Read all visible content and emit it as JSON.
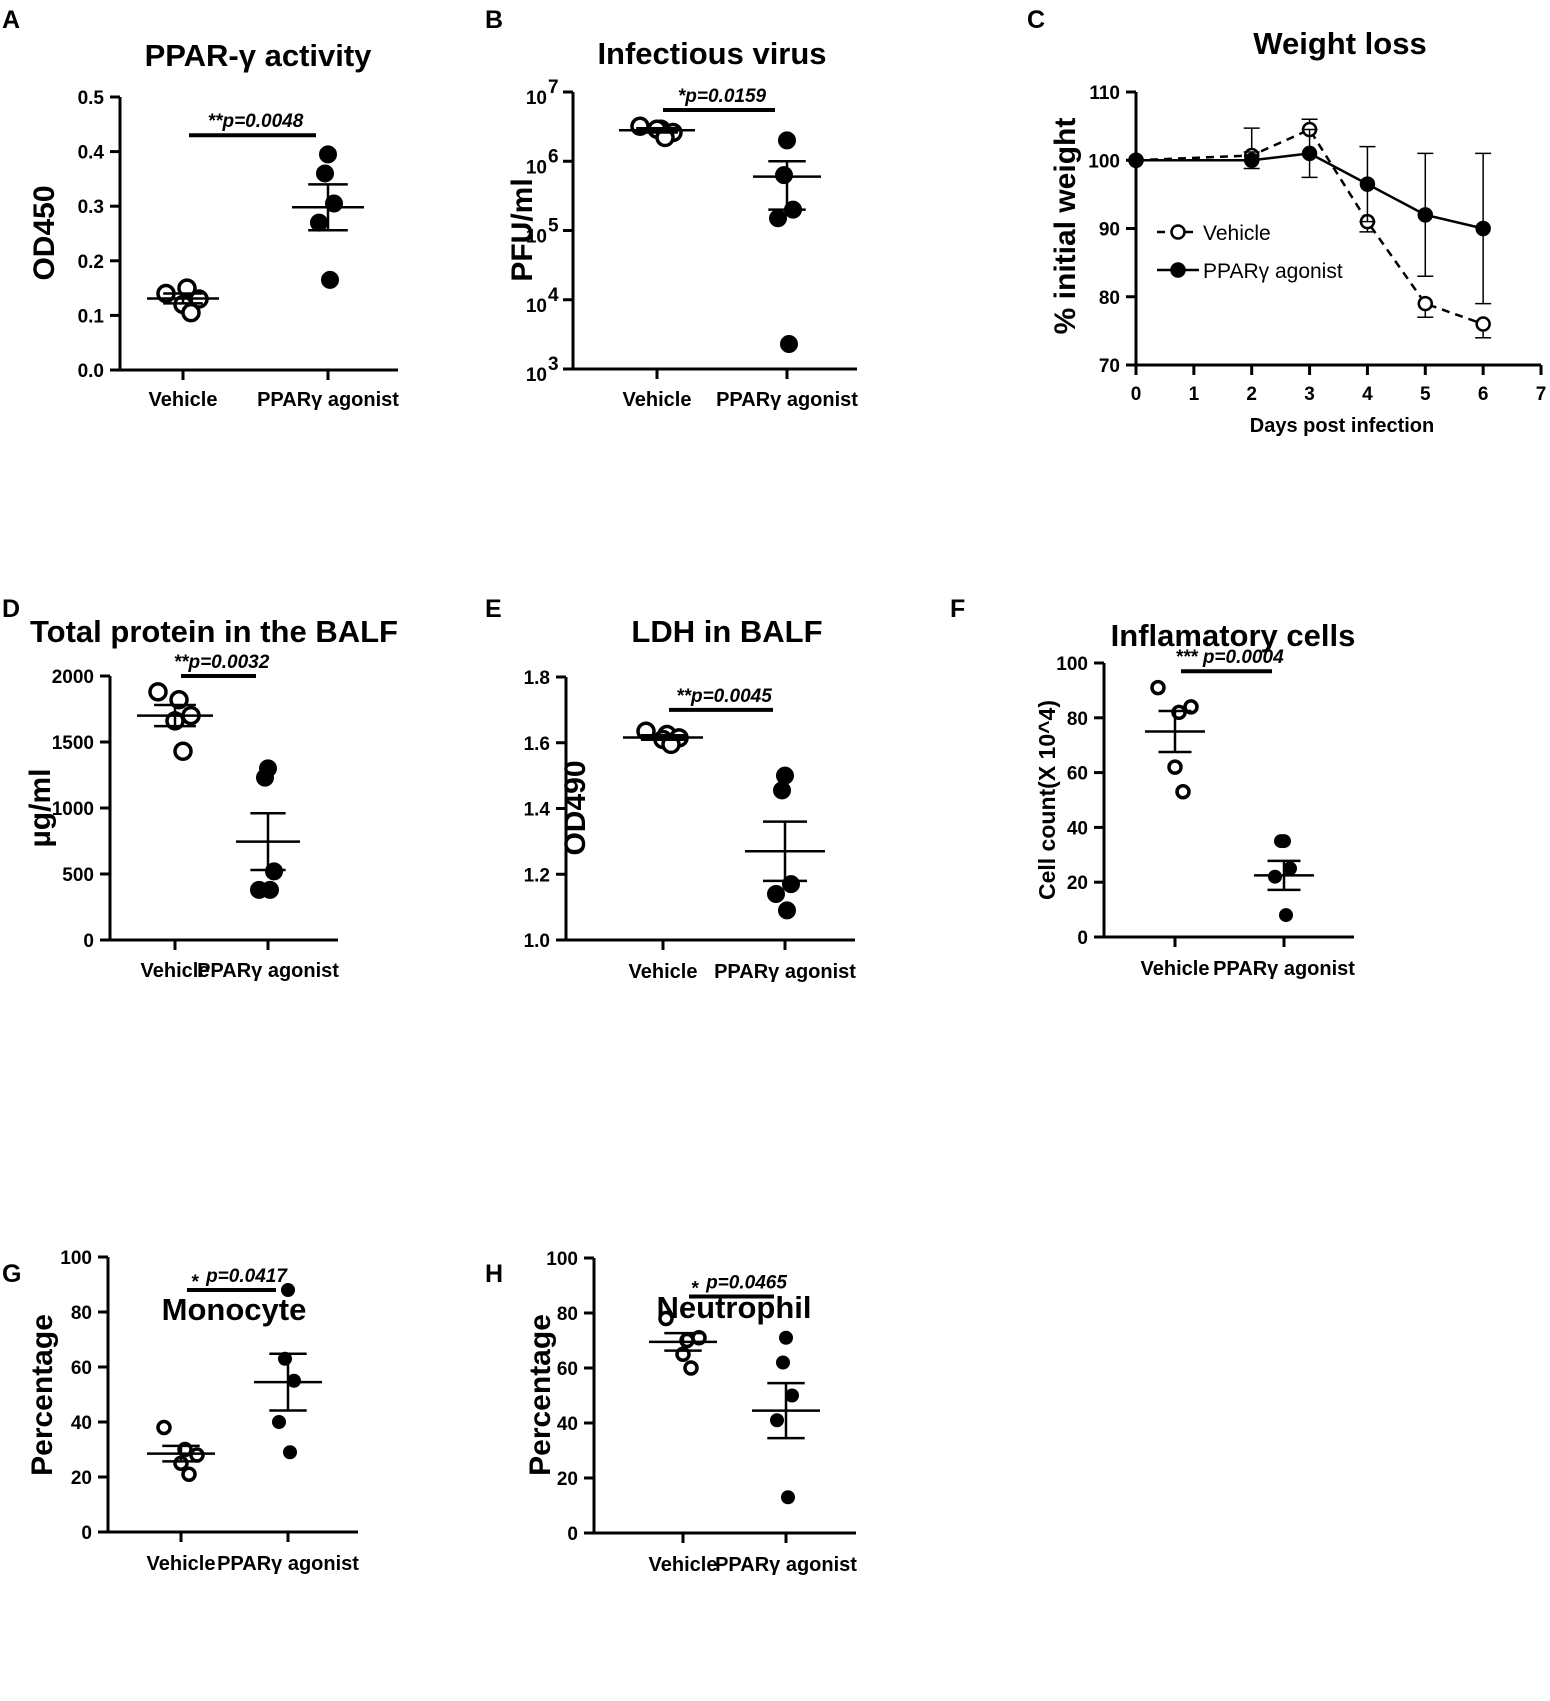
{
  "chart_data": [
    {
      "id": "A",
      "panel_label": "A",
      "type": "scatter",
      "title": "PPAR-γ activity",
      "ylabel": "OD450",
      "yscale": "linear",
      "ylim": [
        0,
        0.5
      ],
      "yticks": [
        "0.0",
        "0.1",
        "0.2",
        "0.3",
        "0.4",
        "0.5"
      ],
      "ytick_values": [
        0,
        0.1,
        0.2,
        0.3,
        0.4,
        0.5
      ],
      "categories": [
        "Vehicle",
        "PPARγ agonist"
      ],
      "series": [
        {
          "name": "Vehicle",
          "marker": "open",
          "values": [
            0.14,
            0.15,
            0.13,
            0.12,
            0.105
          ],
          "mean": 0.131,
          "sem": 0.009
        },
        {
          "name": "PPARγ agonist",
          "marker": "filled",
          "values": [
            0.395,
            0.36,
            0.305,
            0.27,
            0.165
          ],
          "mean": 0.298,
          "sem": 0.042
        }
      ],
      "significance": {
        "label": "**p=0.0048",
        "y": 0.43
      }
    },
    {
      "id": "B",
      "panel_label": "B",
      "type": "scatter",
      "title": "Infectious virus",
      "ylabel": "PFU/ml",
      "yscale": "log",
      "ylim": [
        1000,
        10000000
      ],
      "ytick_base": "10",
      "ytick_exponents": [
        "3",
        "4",
        "5",
        "6",
        "7"
      ],
      "ytick_values": [
        1000,
        10000,
        100000,
        1000000,
        10000000
      ],
      "categories": [
        "Vehicle",
        "PPARγ agonist"
      ],
      "series": [
        {
          "name": "Vehicle",
          "marker": "open",
          "values": [
            3200000,
            2900000,
            2600000,
            2900000,
            2200000
          ],
          "mean": 2800000,
          "sem_low": 2600000,
          "sem_high": 3000000
        },
        {
          "name": "PPARγ agonist",
          "marker": "filled",
          "values": [
            2000000,
            630000,
            200000,
            150000,
            2300
          ],
          "mean": 600000,
          "sem_low": 200000,
          "sem_high": 1000000
        }
      ],
      "significance": {
        "label": "*p=0.0159",
        "y": 5500000
      }
    },
    {
      "id": "C",
      "panel_label": "C",
      "type": "line",
      "title": "Weight loss",
      "xlabel": "Days post infection",
      "ylabel": "% initial weight",
      "xlim": [
        0,
        7
      ],
      "xticks": [
        "0",
        "1",
        "2",
        "3",
        "4",
        "5",
        "6",
        "7"
      ],
      "xtick_values": [
        0,
        1,
        2,
        3,
        4,
        5,
        6,
        7
      ],
      "ylim": [
        70,
        110
      ],
      "yticks": [
        "70",
        "80",
        "90",
        "100",
        "110"
      ],
      "ytick_values": [
        70,
        80,
        90,
        100,
        110
      ],
      "legend_position": "center-left",
      "series": [
        {
          "name": "Vehicle",
          "style": "dashed-open",
          "x": [
            0,
            2,
            3,
            4,
            5,
            6
          ],
          "y": [
            100,
            100.7,
            104.5,
            91,
            79,
            76
          ],
          "err": [
            0,
            4,
            1.5,
            1.5,
            2,
            2
          ]
        },
        {
          "name": "PPARγ agonist",
          "style": "solid-filled",
          "x": [
            0,
            2,
            3,
            4,
            5,
            6
          ],
          "y": [
            100,
            100,
            101,
            96.5,
            92,
            90
          ],
          "err": [
            0,
            1.2,
            3.5,
            5.5,
            9,
            11
          ]
        }
      ]
    },
    {
      "id": "D",
      "panel_label": "D",
      "type": "scatter",
      "title": "Total protein in the BALF",
      "ylabel": "µg/ml",
      "yscale": "linear",
      "ylim": [
        0,
        2000
      ],
      "yticks": [
        "0",
        "500",
        "1000",
        "1500",
        "2000"
      ],
      "ytick_values": [
        0,
        500,
        1000,
        1500,
        2000
      ],
      "categories": [
        "Vehicle",
        "PPARγ agonist"
      ],
      "series": [
        {
          "name": "Vehicle",
          "marker": "open",
          "values": [
            1880,
            1820,
            1700,
            1660,
            1430
          ],
          "mean": 1700,
          "sem": 80
        },
        {
          "name": "PPARγ agonist",
          "marker": "filled",
          "values": [
            1300,
            1230,
            520,
            380,
            380
          ],
          "mean": 745,
          "sem": 215
        }
      ],
      "significance": {
        "label": "**p=0.0032",
        "y": 2000
      }
    },
    {
      "id": "E",
      "panel_label": "E",
      "type": "scatter",
      "title": "LDH in BALF",
      "ylabel": "OD490",
      "yscale": "linear",
      "ylim": [
        1.0,
        1.8
      ],
      "yticks": [
        "1.0",
        "1.2",
        "1.4",
        "1.6",
        "1.8"
      ],
      "ytick_values": [
        1.0,
        1.2,
        1.4,
        1.6,
        1.8
      ],
      "categories": [
        "Vehicle",
        "PPARγ agonist"
      ],
      "series": [
        {
          "name": "Vehicle",
          "marker": "open",
          "values": [
            1.635,
            1.625,
            1.615,
            1.61,
            1.595
          ],
          "mean": 1.616,
          "sem": 0.007
        },
        {
          "name": "PPARγ agonist",
          "marker": "filled",
          "values": [
            1.5,
            1.455,
            1.17,
            1.14,
            1.09
          ],
          "mean": 1.27,
          "sem": 0.09
        }
      ],
      "significance": {
        "label": "**p=0.0045",
        "y": 1.7
      }
    },
    {
      "id": "F",
      "panel_label": "F",
      "type": "scatter",
      "title": "Inflamatory cells",
      "ylabel": "Cell count(X 10^4)",
      "yscale": "linear",
      "ylim": [
        0,
        100
      ],
      "yticks": [
        "0",
        "20",
        "40",
        "60",
        "80",
        "100"
      ],
      "ytick_values": [
        0,
        20,
        40,
        60,
        80,
        100
      ],
      "categories": [
        "Vehicle",
        "PPARγ agonist"
      ],
      "series": [
        {
          "name": "Vehicle",
          "marker": "open-small",
          "values": [
            91,
            82,
            84,
            62,
            53
          ],
          "mean": 75,
          "sem": 7.5
        },
        {
          "name": "PPARγ agonist",
          "marker": "filled-small",
          "values": [
            35,
            35,
            25,
            22,
            8
          ],
          "mean": 22.5,
          "sem": 5.3
        }
      ],
      "significance": {
        "label": "*** p=0.0004",
        "y": 97
      }
    },
    {
      "id": "G",
      "panel_label": "G",
      "type": "scatter",
      "title": "Monocyte",
      "ylabel": "Percentage",
      "yscale": "linear",
      "ylim": [
        0,
        100
      ],
      "yticks": [
        "0",
        "20",
        "40",
        "60",
        "80",
        "100"
      ],
      "ytick_values": [
        0,
        20,
        40,
        60,
        80,
        100
      ],
      "categories": [
        "Vehicle",
        "PPARγ agonist"
      ],
      "series": [
        {
          "name": "Vehicle",
          "marker": "open-small",
          "values": [
            38,
            30,
            28,
            25,
            21
          ],
          "mean": 28.5,
          "sem": 2.8
        },
        {
          "name": "PPARγ agonist",
          "marker": "filled-small",
          "values": [
            88,
            63,
            55,
            40,
            29
          ],
          "mean": 54.5,
          "sem": 10.3
        }
      ],
      "significance": {
        "star": "*",
        "label": "p=0.0417",
        "y": 88
      }
    },
    {
      "id": "H",
      "panel_label": "H",
      "type": "scatter",
      "title": "Neutrophil",
      "ylabel": "Percentage",
      "yscale": "linear",
      "ylim": [
        0,
        100
      ],
      "yticks": [
        "0",
        "20",
        "40",
        "60",
        "80",
        "100"
      ],
      "ytick_values": [
        0,
        20,
        40,
        60,
        80,
        100
      ],
      "categories": [
        "Vehicle",
        "PPARγ agonist"
      ],
      "series": [
        {
          "name": "Vehicle",
          "marker": "open-small",
          "values": [
            78,
            70,
            71,
            65,
            60
          ],
          "mean": 69.5,
          "sem": 3.2
        },
        {
          "name": "PPARγ agonist",
          "marker": "filled-small",
          "values": [
            71,
            62,
            50,
            41,
            13
          ],
          "mean": 44.5,
          "sem": 10
        }
      ],
      "significance": {
        "star": "*",
        "label": "p=0.0465",
        "y": 86
      }
    }
  ]
}
